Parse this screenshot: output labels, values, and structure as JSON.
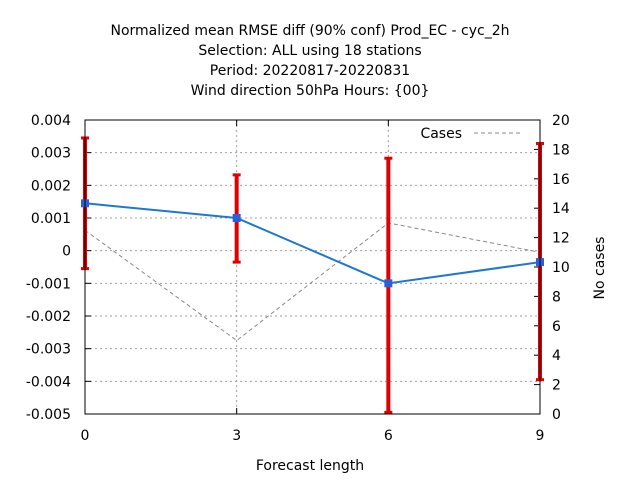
{
  "chart_data": {
    "type": "line",
    "title_lines": [
      "Normalized mean RMSE diff (90% conf) Prod_EC - cyc_2h",
      "Selection: ALL using    18 stations",
      "Period: 20220817-20220831",
      "Wind direction 50hPa   Hours: {00}"
    ],
    "xlabel": "Forecast length",
    "ylabel": "",
    "y2label": "No cases",
    "x": [
      0,
      3,
      6,
      9
    ],
    "xticks": [
      "0",
      "3",
      "6",
      "9"
    ],
    "xlim": [
      0,
      9
    ],
    "ylim": [
      -0.005,
      0.004
    ],
    "yticks": [
      "-0.005",
      "-0.004",
      "-0.003",
      "-0.002",
      "-0.001",
      "0",
      "0.001",
      "0.002",
      "0.003",
      "0.004"
    ],
    "y2lim": [
      0,
      20
    ],
    "y2ticks": [
      "0",
      "2",
      "4",
      "6",
      "8",
      "10",
      "12",
      "14",
      "16",
      "18",
      "20"
    ],
    "grid": true,
    "legend_position": "top-right",
    "series": [
      {
        "values": [
          0.00145,
          0.001,
          -0.001,
          -0.00035
        ],
        "err_low": [
          -0.00055,
          -0.00035,
          -0.00495,
          -0.00395
        ],
        "err_high": [
          0.00345,
          0.00232,
          0.00283,
          0.00328
        ],
        "color": "#1f77d4",
        "errcolor": "#e00000"
      },
      {
        "name": "Cases",
        "axis": "y2",
        "values": [
          12.5,
          5,
          13,
          11
        ],
        "color": "#888888",
        "dash": true
      }
    ]
  }
}
